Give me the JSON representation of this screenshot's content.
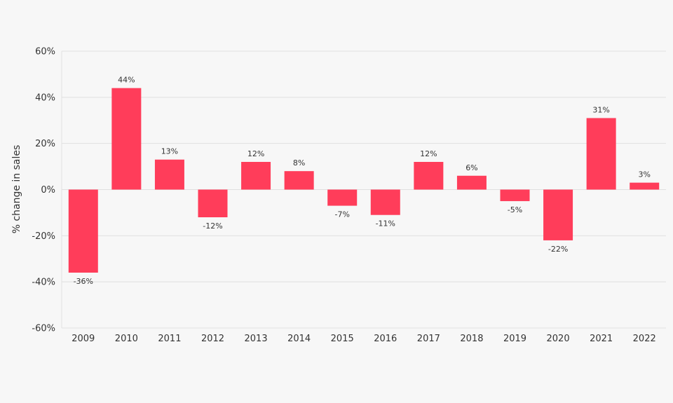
{
  "chart_data": {
    "type": "bar",
    "categories": [
      "2009",
      "2010",
      "2011",
      "2012",
      "2013",
      "2014",
      "2015",
      "2016",
      "2017",
      "2018",
      "2019",
      "2020",
      "2021",
      "2022"
    ],
    "values": [
      -36,
      44,
      13,
      -12,
      12,
      8,
      -7,
      -11,
      12,
      6,
      -5,
      -22,
      31,
      3
    ],
    "data_labels": [
      "-36%",
      "44%",
      "13%",
      "-12%",
      "12%",
      "8%",
      "-7%",
      "-11%",
      "12%",
      "6%",
      "-5%",
      "-22%",
      "31%",
      "3%"
    ],
    "ylabel": "% change in sales",
    "ylim": [
      -60,
      60
    ],
    "yticks": [
      60,
      40,
      20,
      0,
      -20,
      -40,
      -60
    ],
    "ytick_labels": [
      "60%",
      "40%",
      "20%",
      "0%",
      "-20%",
      "-40%",
      "-60%"
    ],
    "grid": true,
    "legend": "none",
    "colors": {
      "bar": "#ff3d5a",
      "grid": "#e0e0e0",
      "background": "#f7f7f7",
      "text": "#333333"
    }
  }
}
